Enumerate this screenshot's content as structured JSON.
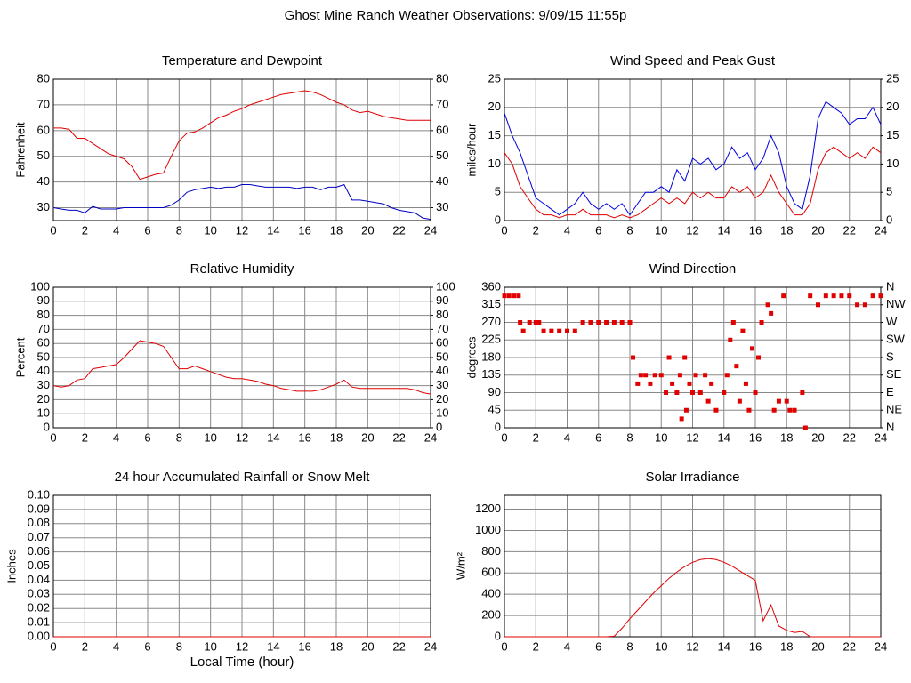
{
  "title": "Ghost Mine Ranch Weather Observations: 9/09/15 11:55p",
  "chart_data": [
    {
      "type": "line",
      "title": "Temperature and Dewpoint",
      "ylabel": "Fahrenheit",
      "x": [
        0,
        0.5,
        1,
        1.5,
        2,
        2.5,
        3,
        3.5,
        4,
        4.5,
        5,
        5.5,
        6,
        6.5,
        7,
        7.5,
        8,
        8.5,
        9,
        9.5,
        10,
        10.5,
        11,
        11.5,
        12,
        12.5,
        13,
        13.5,
        14,
        14.5,
        15,
        15.5,
        16,
        16.5,
        17,
        17.5,
        18,
        18.5,
        19,
        19.5,
        20,
        20.5,
        21,
        21.5,
        22,
        22.5,
        23,
        23.5,
        24
      ],
      "xlim": [
        0,
        24
      ],
      "xticks": [
        0,
        2,
        4,
        6,
        8,
        10,
        12,
        14,
        16,
        18,
        20,
        22,
        24
      ],
      "ylim": [
        25,
        80
      ],
      "yticks": [
        30,
        40,
        50,
        60,
        70,
        80
      ],
      "y2lim": [
        25,
        80
      ],
      "y2ticks": [
        30,
        40,
        50,
        60,
        70,
        80
      ],
      "grid": true,
      "series": [
        {
          "color": "#e00000",
          "values": [
            61,
            61,
            60.5,
            57,
            57,
            55,
            53,
            51,
            50,
            49,
            46,
            41,
            42,
            43,
            43.5,
            50,
            56,
            59,
            59.5,
            61,
            63,
            65,
            66,
            67.5,
            68.5,
            70,
            71,
            72,
            73,
            74,
            74.5,
            75,
            75.5,
            75,
            74,
            72.5,
            71,
            70,
            68,
            67,
            67.5,
            66.5,
            65.5,
            65,
            64.5,
            64,
            64,
            64,
            64
          ]
        },
        {
          "color": "#0000c0",
          "values": [
            30,
            29.5,
            29,
            29,
            28,
            30.5,
            29.5,
            29.5,
            29.5,
            30,
            30,
            30,
            30,
            30,
            30,
            31,
            33,
            36,
            37,
            37.5,
            38,
            37.5,
            38,
            38,
            39,
            39,
            38.5,
            38,
            38,
            38,
            38,
            37.5,
            38,
            38,
            37,
            38,
            38,
            39,
            33,
            33,
            32.5,
            32,
            31.5,
            30,
            29,
            28.5,
            28,
            26,
            25.5
          ]
        }
      ]
    },
    {
      "type": "line",
      "title": "Wind Speed and Peak Gust",
      "ylabel": "miles/hour",
      "x": [
        0,
        0.5,
        1,
        1.5,
        2,
        2.5,
        3,
        3.5,
        4,
        4.5,
        5,
        5.5,
        6,
        6.5,
        7,
        7.5,
        8,
        8.5,
        9,
        9.5,
        10,
        10.5,
        11,
        11.5,
        12,
        12.5,
        13,
        13.5,
        14,
        14.5,
        15,
        15.5,
        16,
        16.5,
        17,
        17.5,
        18,
        18.5,
        19,
        19.5,
        20,
        20.5,
        21,
        21.5,
        22,
        22.5,
        23,
        23.5,
        24
      ],
      "xlim": [
        0,
        24
      ],
      "xticks": [
        0,
        2,
        4,
        6,
        8,
        10,
        12,
        14,
        16,
        18,
        20,
        22,
        24
      ],
      "ylim": [
        0,
        25
      ],
      "yticks": [
        0,
        5,
        10,
        15,
        20,
        25
      ],
      "y2lim": [
        0,
        25
      ],
      "y2ticks": [
        0,
        5,
        10,
        15,
        20,
        25
      ],
      "grid": true,
      "series": [
        {
          "color": "#0000e0",
          "values": [
            19,
            15,
            12,
            8,
            4,
            3,
            2,
            1,
            2,
            3,
            5,
            3,
            2,
            3,
            2,
            3,
            1,
            3,
            5,
            5,
            6,
            5,
            9,
            7,
            11,
            10,
            11,
            9,
            10,
            13,
            11,
            12,
            9,
            11,
            15,
            12,
            6,
            3,
            2,
            8,
            18,
            21,
            20,
            19,
            17,
            18,
            18,
            20,
            17
          ]
        },
        {
          "color": "#e00000",
          "values": [
            12,
            10,
            6,
            4,
            2,
            1,
            1,
            0.5,
            1,
            1,
            2,
            1,
            1,
            1,
            0.5,
            1,
            0.5,
            1,
            2,
            3,
            4,
            3,
            4,
            3,
            5,
            4,
            5,
            4,
            4,
            6,
            5,
            6,
            4,
            5,
            8,
            5,
            3,
            1,
            1,
            3,
            9,
            12,
            13,
            12,
            11,
            12,
            11,
            13,
            12
          ]
        }
      ]
    },
    {
      "type": "line",
      "title": "Relative Humidity",
      "ylabel": "Percent",
      "x": [
        0,
        0.5,
        1,
        1.5,
        2,
        2.5,
        3,
        3.5,
        4,
        4.5,
        5,
        5.5,
        6,
        6.5,
        7,
        7.5,
        8,
        8.5,
        9,
        9.5,
        10,
        10.5,
        11,
        11.5,
        12,
        12.5,
        13,
        13.5,
        14,
        14.5,
        15,
        15.5,
        16,
        16.5,
        17,
        17.5,
        18,
        18.5,
        19,
        19.5,
        20,
        20.5,
        21,
        21.5,
        22,
        22.5,
        23,
        23.5,
        24
      ],
      "xlim": [
        0,
        24
      ],
      "xticks": [
        0,
        2,
        4,
        6,
        8,
        10,
        12,
        14,
        16,
        18,
        20,
        22,
        24
      ],
      "ylim": [
        0,
        100
      ],
      "yticks": [
        0,
        10,
        20,
        30,
        40,
        50,
        60,
        70,
        80,
        90,
        100
      ],
      "y2lim": [
        0,
        100
      ],
      "y2ticks": [
        0,
        10,
        20,
        30,
        40,
        50,
        60,
        70,
        80,
        90,
        100
      ],
      "grid": true,
      "series": [
        {
          "color": "#e00000",
          "values": [
            30,
            29,
            30,
            34,
            35,
            42,
            43,
            44,
            45,
            50,
            56,
            62,
            61,
            60,
            58,
            50,
            42,
            42,
            44,
            42,
            40,
            38,
            36,
            35,
            35,
            34,
            33,
            31,
            30,
            28,
            27,
            26,
            26,
            26,
            27,
            29,
            31,
            34,
            29,
            28,
            28,
            28,
            28,
            28,
            28,
            28,
            27,
            25,
            24
          ]
        }
      ]
    },
    {
      "type": "scatter",
      "title": "Wind Direction",
      "ylabel": "degrees",
      "x": [
        0,
        0.3,
        0.6,
        0.9,
        1,
        1.2,
        1.6,
        2,
        2.2,
        2.5,
        3,
        3.5,
        4,
        4.5,
        5,
        5.5,
        6,
        6.5,
        7,
        7.5,
        8,
        8.2,
        8.5,
        8.7,
        9,
        9.3,
        9.6,
        10,
        10.3,
        10.5,
        10.7,
        11,
        11.2,
        11.3,
        11.5,
        11.6,
        11.8,
        12,
        12.2,
        12.5,
        12.8,
        13,
        13.2,
        13.5,
        14,
        14.2,
        14.4,
        14.6,
        14.8,
        15,
        15.2,
        15.4,
        15.6,
        15.8,
        16,
        16.2,
        16.4,
        16.8,
        17,
        17.2,
        17.5,
        17.8,
        18,
        18.2,
        18.5,
        19,
        19.2,
        19.5,
        20,
        20.5,
        21,
        21.5,
        22,
        22.5,
        23,
        23.5,
        24
      ],
      "xlim": [
        0,
        24
      ],
      "xticks": [
        0,
        2,
        4,
        6,
        8,
        10,
        12,
        14,
        16,
        18,
        20,
        22,
        24
      ],
      "ylim": [
        0,
        360
      ],
      "yticks": [
        0,
        45,
        90,
        135,
        180,
        225,
        270,
        315,
        360
      ],
      "y2lim": [
        0,
        360
      ],
      "y2ticks": [
        {
          "value": 0,
          "label": "N"
        },
        {
          "value": 45,
          "label": "NE"
        },
        {
          "value": 90,
          "label": "E"
        },
        {
          "value": 135,
          "label": "SE"
        },
        {
          "value": 180,
          "label": "S"
        },
        {
          "value": 225,
          "label": "SW"
        },
        {
          "value": 270,
          "label": "W"
        },
        {
          "value": 315,
          "label": "NW"
        },
        {
          "value": 360,
          "label": "N"
        }
      ],
      "grid": true,
      "color": "#e00000",
      "values": [
        338,
        338,
        338,
        338,
        270,
        248,
        270,
        270,
        270,
        248,
        248,
        248,
        248,
        248,
        270,
        270,
        270,
        270,
        270,
        270,
        270,
        180,
        113,
        135,
        135,
        113,
        135,
        135,
        90,
        180,
        113,
        90,
        135,
        23,
        180,
        45,
        113,
        90,
        135,
        90,
        135,
        68,
        113,
        45,
        90,
        135,
        225,
        270,
        158,
        68,
        248,
        113,
        45,
        203,
        90,
        180,
        270,
        315,
        293,
        45,
        68,
        338,
        68,
        45,
        45,
        90,
        0,
        338,
        315,
        338,
        338,
        338,
        338,
        315,
        315,
        338,
        338
      ]
    },
    {
      "type": "line",
      "title": "24 hour Accumulated Rainfall or Snow Melt",
      "ylabel": "Inches",
      "xlabel": "Local Time (hour)",
      "x": [
        0,
        24
      ],
      "xlim": [
        0,
        24
      ],
      "xticks": [
        0,
        2,
        4,
        6,
        8,
        10,
        12,
        14,
        16,
        18,
        20,
        22,
        24
      ],
      "ylim": [
        0,
        0.1
      ],
      "yticks": [
        {
          "value": 0,
          "label": "0.00"
        },
        {
          "value": 0.01,
          "label": "0.01"
        },
        {
          "value": 0.02,
          "label": "0.02"
        },
        {
          "value": 0.03,
          "label": "0.03"
        },
        {
          "value": 0.04,
          "label": "0.04"
        },
        {
          "value": 0.05,
          "label": "0.05"
        },
        {
          "value": 0.06,
          "label": "0.06"
        },
        {
          "value": 0.07,
          "label": "0.07"
        },
        {
          "value": 0.08,
          "label": "0.08"
        },
        {
          "value": 0.09,
          "label": "0.09"
        },
        {
          "value": 0.1,
          "label": "0.10"
        }
      ],
      "grid": true,
      "series": [
        {
          "color": "#e00000",
          "values": [
            0,
            0
          ]
        }
      ]
    },
    {
      "type": "line",
      "title": "Solar Irradiance",
      "ylabel": "W/m²",
      "x": [
        0,
        0.5,
        1,
        1.5,
        2,
        2.5,
        3,
        3.5,
        4,
        4.5,
        5,
        5.5,
        6,
        6.5,
        7,
        7.5,
        8,
        8.5,
        9,
        9.5,
        10,
        10.5,
        11,
        11.5,
        12,
        12.5,
        13,
        13.5,
        14,
        14.5,
        15,
        15.5,
        16,
        16.5,
        17,
        17.5,
        18,
        18.5,
        19,
        19.5,
        20,
        20.5,
        21,
        21.5,
        22,
        22.5,
        23,
        23.5,
        24
      ],
      "xlim": [
        0,
        24
      ],
      "xticks": [
        0,
        2,
        4,
        6,
        8,
        10,
        12,
        14,
        16,
        18,
        20,
        22,
        24
      ],
      "ylim": [
        0,
        1330
      ],
      "yticks": [
        0,
        200,
        400,
        600,
        800,
        1000,
        1200
      ],
      "grid": true,
      "series": [
        {
          "color": "#e00000",
          "values": [
            0,
            0,
            0,
            0,
            0,
            0,
            0,
            0,
            0,
            0,
            0,
            0,
            0,
            0,
            5,
            80,
            170,
            250,
            330,
            410,
            480,
            550,
            610,
            660,
            700,
            725,
            735,
            725,
            700,
            665,
            620,
            575,
            530,
            150,
            300,
            100,
            60,
            40,
            50,
            0,
            0,
            0,
            0,
            0,
            0,
            0,
            0,
            0,
            0
          ]
        }
      ]
    }
  ]
}
